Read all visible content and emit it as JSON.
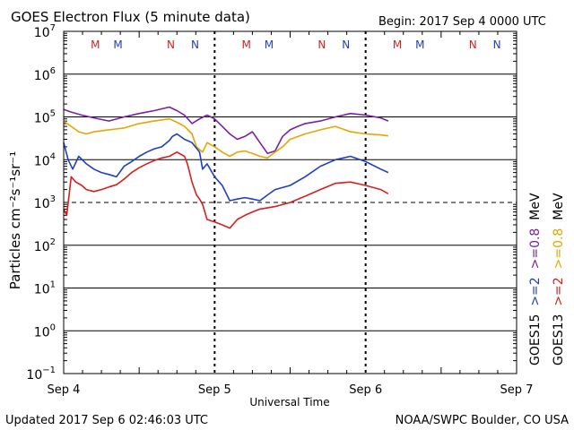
{
  "header": {
    "title": "GOES Electron Flux (5 minute data)",
    "begin": "Begin: 2017 Sep 4 0000 UTC"
  },
  "footer": {
    "updated": "Updated 2017 Sep  6 02:46:03 UTC",
    "credit": "NOAA/SWPC Boulder, CO USA"
  },
  "chart_data": {
    "type": "line",
    "title": "GOES Electron Flux (5 minute data)",
    "xlabel": "Universal Time",
    "ylabel": "Particles cm⁻²s⁻¹sr⁻¹",
    "x_ticks": [
      "Sep 4",
      "Sep 5",
      "Sep 6",
      "Sep 7"
    ],
    "xlim_days": [
      0,
      3
    ],
    "y_scale": "log",
    "ylim": [
      0.1,
      10000000
    ],
    "y_ticks": [
      {
        "value": 10000000,
        "base": "10",
        "exp": "7"
      },
      {
        "value": 1000000,
        "base": "10",
        "exp": "6"
      },
      {
        "value": 100000,
        "base": "10",
        "exp": "5"
      },
      {
        "value": 10000,
        "base": "10",
        "exp": "4"
      },
      {
        "value": 1000,
        "base": "10",
        "exp": "3"
      },
      {
        "value": 100,
        "base": "10",
        "exp": "2"
      },
      {
        "value": 10,
        "base": "10",
        "exp": "1"
      },
      {
        "value": 1,
        "base": "10",
        "exp": "0"
      },
      {
        "value": 0.1,
        "base": "10",
        "exp": "−1"
      }
    ],
    "threshold": {
      "value": 1000,
      "style": "dashed"
    },
    "grid": true,
    "legend": {
      "placement": "right",
      "rows": [
        {
          "label": "GOES15",
          "text": ">=2",
          "color": "#1f3fbf",
          "text2": ">=0.8",
          "color2": "#7b1fa2",
          "unit": "MeV"
        },
        {
          "label": "GOES13",
          "text": ">=2",
          "color": "#d62020",
          "text2": ">=0.8",
          "color2": "#e6a500",
          "unit": "MeV"
        }
      ]
    },
    "markers": [
      {
        "day": 0.21,
        "text": "M",
        "color": "#d62020"
      },
      {
        "day": 0.36,
        "text": "M",
        "color": "#1f3fbf"
      },
      {
        "day": 0.71,
        "text": "N",
        "color": "#d62020"
      },
      {
        "day": 0.87,
        "text": "N",
        "color": "#1f3fbf"
      },
      {
        "day": 1.21,
        "text": "M",
        "color": "#d62020"
      },
      {
        "day": 1.36,
        "text": "M",
        "color": "#1f3fbf"
      },
      {
        "day": 1.71,
        "text": "N",
        "color": "#d62020"
      },
      {
        "day": 1.87,
        "text": "N",
        "color": "#1f3fbf"
      },
      {
        "day": 2.21,
        "text": "M",
        "color": "#d62020"
      },
      {
        "day": 2.36,
        "text": "M",
        "color": "#1f3fbf"
      },
      {
        "day": 2.71,
        "text": "N",
        "color": "#d62020"
      },
      {
        "day": 2.87,
        "text": "N",
        "color": "#1f3fbf"
      }
    ],
    "series": [
      {
        "name": "GOES15 >=0.8 MeV",
        "color": "#7b1fa2",
        "x": [
          0.0,
          0.05,
          0.12,
          0.2,
          0.3,
          0.4,
          0.5,
          0.6,
          0.7,
          0.75,
          0.8,
          0.85,
          0.9,
          0.95,
          1.0,
          1.05,
          1.1,
          1.15,
          1.2,
          1.25,
          1.3,
          1.35,
          1.4,
          1.45,
          1.5,
          1.55,
          1.6,
          1.7,
          1.8,
          1.9,
          2.0,
          2.1,
          2.15
        ],
        "y": [
          150000,
          130000,
          110000,
          95000,
          80000,
          100000,
          120000,
          140000,
          170000,
          140000,
          110000,
          70000,
          90000,
          110000,
          90000,
          60000,
          40000,
          30000,
          35000,
          45000,
          25000,
          14000,
          16000,
          35000,
          50000,
          60000,
          70000,
          80000,
          100000,
          120000,
          110000,
          95000,
          80000
        ]
      },
      {
        "name": "GOES13 >=0.8 MeV",
        "color": "#e6a500",
        "x": [
          0.0,
          0.05,
          0.1,
          0.15,
          0.2,
          0.3,
          0.4,
          0.5,
          0.6,
          0.7,
          0.75,
          0.8,
          0.85,
          0.88,
          0.92,
          0.95,
          1.0,
          1.05,
          1.1,
          1.15,
          1.2,
          1.25,
          1.3,
          1.35,
          1.4,
          1.45,
          1.5,
          1.6,
          1.7,
          1.8,
          1.9,
          2.0,
          2.1,
          2.15
        ],
        "y": [
          80000,
          60000,
          45000,
          40000,
          45000,
          50000,
          55000,
          70000,
          80000,
          90000,
          75000,
          60000,
          40000,
          20000,
          15000,
          25000,
          20000,
          15000,
          12000,
          15000,
          16000,
          14000,
          12000,
          11000,
          15000,
          20000,
          30000,
          40000,
          50000,
          60000,
          45000,
          40000,
          38000,
          36000
        ]
      },
      {
        "name": "GOES15 >=2 MeV",
        "color": "#1f3fbf",
        "x": [
          0.0,
          0.03,
          0.06,
          0.1,
          0.15,
          0.2,
          0.25,
          0.3,
          0.35,
          0.4,
          0.45,
          0.5,
          0.55,
          0.6,
          0.65,
          0.7,
          0.72,
          0.75,
          0.8,
          0.85,
          0.9,
          0.92,
          0.95,
          1.0,
          1.05,
          1.1,
          1.15,
          1.2,
          1.25,
          1.3,
          1.35,
          1.4,
          1.5,
          1.6,
          1.7,
          1.8,
          1.9,
          2.0,
          2.1,
          2.15
        ],
        "y": [
          25000,
          10000,
          6000,
          12000,
          8000,
          6000,
          5000,
          4500,
          4000,
          7000,
          9000,
          12000,
          15000,
          18000,
          20000,
          28000,
          35000,
          40000,
          30000,
          25000,
          15000,
          6000,
          8000,
          4000,
          2500,
          1100,
          1200,
          1300,
          1200,
          1100,
          1500,
          2000,
          2500,
          4000,
          7000,
          10000,
          12000,
          9000,
          6000,
          5000
        ]
      },
      {
        "name": "GOES13 >=2 MeV",
        "color": "#d62020",
        "x": [
          0.0,
          0.02,
          0.05,
          0.08,
          0.12,
          0.15,
          0.2,
          0.25,
          0.3,
          0.35,
          0.4,
          0.45,
          0.5,
          0.55,
          0.6,
          0.65,
          0.7,
          0.75,
          0.8,
          0.82,
          0.85,
          0.88,
          0.9,
          0.92,
          0.95,
          1.0,
          1.05,
          1.1,
          1.15,
          1.2,
          1.25,
          1.3,
          1.4,
          1.5,
          1.6,
          1.7,
          1.8,
          1.9,
          2.0,
          2.1,
          2.15
        ],
        "y": [
          700,
          500,
          4000,
          3000,
          2500,
          2000,
          1800,
          2000,
          2300,
          2600,
          3500,
          5000,
          6500,
          8000,
          9500,
          11000,
          12000,
          15000,
          12000,
          8000,
          3000,
          1500,
          1200,
          900,
          400,
          350,
          300,
          250,
          400,
          500,
          600,
          700,
          800,
          1000,
          1400,
          2000,
          2800,
          3000,
          2500,
          2000,
          1600
        ]
      }
    ]
  }
}
